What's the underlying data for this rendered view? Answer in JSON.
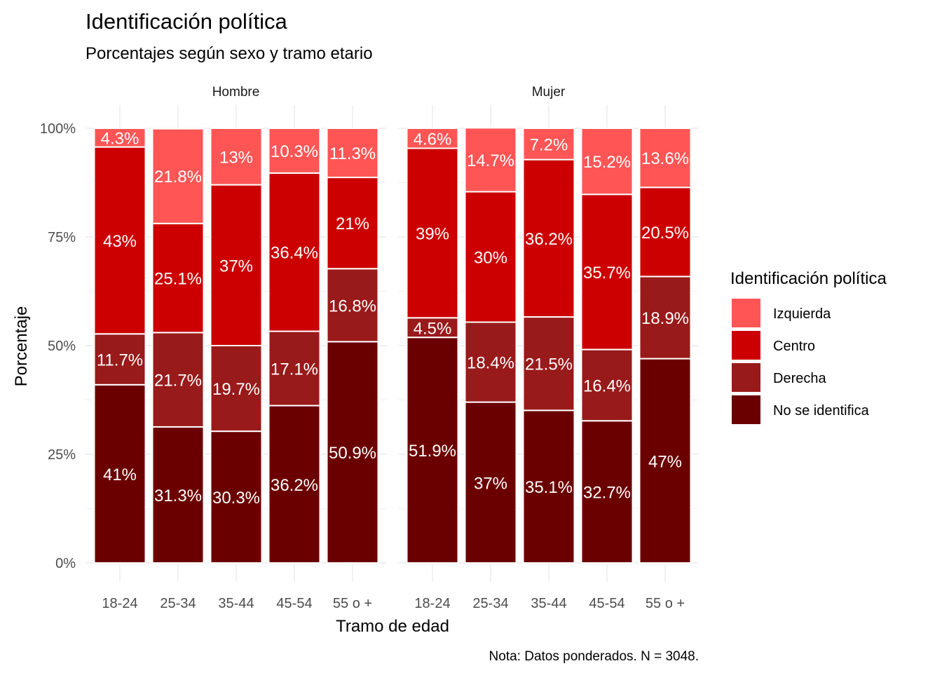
{
  "chart_data": {
    "type": "bar",
    "stacked": true,
    "faceted": true,
    "title": "Identificación política",
    "subtitle": "Porcentajes según sexo y tramo etario",
    "xlabel": "Tramo de edad",
    "ylabel": "Porcentaje",
    "caption": "Nota: Datos ponderados. N = 3048.",
    "ylim": [
      0,
      100
    ],
    "y_ticks": [
      "0%",
      "25%",
      "50%",
      "75%",
      "100%"
    ],
    "grid": true,
    "legend_position": "right",
    "legend_title": "Identificación política",
    "categories": [
      "18-24",
      "25-34",
      "35-44",
      "45-54",
      "55 o +"
    ],
    "series_order_bottom_to_top": [
      "No se identifica",
      "Derecha",
      "Centro",
      "Izquierda"
    ],
    "legend": [
      {
        "name": "Izquierda",
        "color": "#ff5555"
      },
      {
        "name": "Centro",
        "color": "#cc0000"
      },
      {
        "name": "Derecha",
        "color": "#991a1a"
      },
      {
        "name": "No se identifica",
        "color": "#6b0000"
      }
    ],
    "facets": [
      {
        "name": "Hombre",
        "series": [
          {
            "name": "No se identifica",
            "values": [
              41,
              31.3,
              30.3,
              36.2,
              50.9
            ],
            "labels": [
              "41%",
              "31.3%",
              "30.3%",
              "36.2%",
              "50.9%"
            ]
          },
          {
            "name": "Derecha",
            "values": [
              11.7,
              21.7,
              19.7,
              17.1,
              16.8
            ],
            "labels": [
              "11.7%",
              "21.7%",
              "19.7%",
              "17.1%",
              "16.8%"
            ]
          },
          {
            "name": "Centro",
            "values": [
              43,
              25.1,
              37,
              36.4,
              21
            ],
            "labels": [
              "43%",
              "25.1%",
              "37%",
              "36.4%",
              "21%"
            ]
          },
          {
            "name": "Izquierda",
            "values": [
              4.3,
              21.8,
              13,
              10.3,
              11.3
            ],
            "labels": [
              "4.3%",
              "21.8%",
              "13%",
              "10.3%",
              "11.3%"
            ]
          }
        ]
      },
      {
        "name": "Mujer",
        "series": [
          {
            "name": "No se identifica",
            "values": [
              51.9,
              37,
              35.1,
              32.7,
              47
            ],
            "labels": [
              "51.9%",
              "37%",
              "35.1%",
              "32.7%",
              "47%"
            ]
          },
          {
            "name": "Derecha",
            "values": [
              4.5,
              18.4,
              21.5,
              16.4,
              18.9
            ],
            "labels": [
              "4.5%",
              "18.4%",
              "21.5%",
              "16.4%",
              "18.9%"
            ]
          },
          {
            "name": "Centro",
            "values": [
              39,
              30,
              36.2,
              35.7,
              20.5
            ],
            "labels": [
              "39%",
              "30%",
              "36.2%",
              "35.7%",
              "20.5%"
            ]
          },
          {
            "name": "Izquierda",
            "values": [
              4.6,
              14.7,
              7.2,
              15.2,
              13.6
            ],
            "labels": [
              "4.6%",
              "14.7%",
              "7.2%",
              "15.2%",
              "13.6%"
            ]
          }
        ]
      }
    ]
  }
}
